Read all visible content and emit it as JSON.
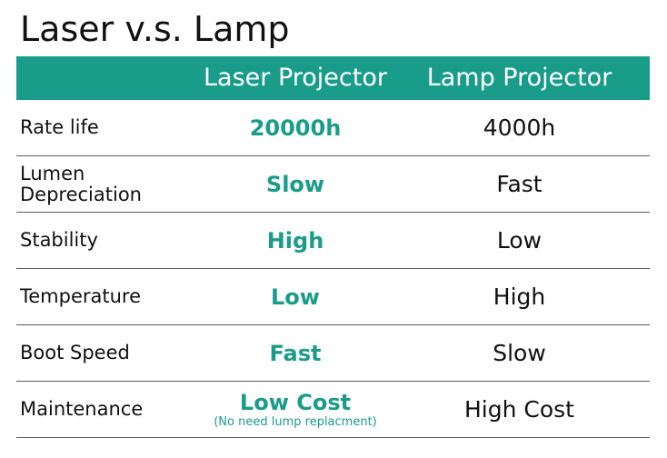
{
  "title": "Laser v.s. Lamp",
  "colors": {
    "accent": "#1a9c8a",
    "text": "#111111",
    "header_text": "#ffffff",
    "divider": "#5a5a5a"
  },
  "header": {
    "label_col": "",
    "laser_col": "Laser Projector",
    "lamp_col": "Lamp Projector"
  },
  "rows": [
    {
      "label": "Rate life",
      "laser": "20000h",
      "laser_note": "",
      "lamp": "4000h"
    },
    {
      "label": "Lumen Depreciation",
      "laser": "Slow",
      "laser_note": "",
      "lamp": "Fast"
    },
    {
      "label": "Stability",
      "laser": "High",
      "laser_note": "",
      "lamp": "Low"
    },
    {
      "label": "Temperature",
      "laser": "Low",
      "laser_note": "",
      "lamp": "High"
    },
    {
      "label": "Boot Speed",
      "laser": "Fast",
      "laser_note": "",
      "lamp": "Slow"
    },
    {
      "label": "Maintenance",
      "laser": "Low Cost",
      "laser_note": "(No need lump replacment)",
      "lamp": "High Cost"
    }
  ]
}
